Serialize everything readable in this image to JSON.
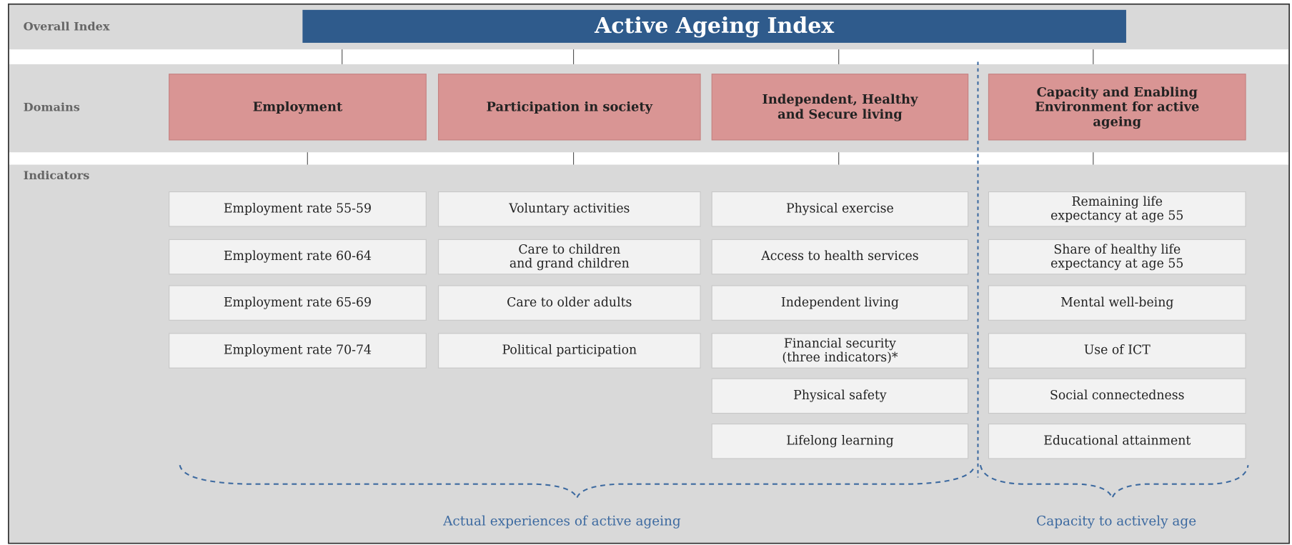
{
  "row_labels": {
    "overall": "Overall Index",
    "domains": "Domains",
    "indicators": "Indicators"
  },
  "title": "Active Ageing Index",
  "domains": [
    {
      "label": [
        "Employment"
      ],
      "indicators": [
        [
          "Employment rate 55-59"
        ],
        [
          "Employment rate 60-64"
        ],
        [
          "Employment rate 65-69"
        ],
        [
          "Employment rate 70-74"
        ]
      ]
    },
    {
      "label": [
        "Participation in society"
      ],
      "indicators": [
        [
          "Voluntary activities"
        ],
        [
          "Care to children",
          "and grand children"
        ],
        [
          "Care to older adults"
        ],
        [
          "Political participation"
        ]
      ]
    },
    {
      "label": [
        "Independent, Healthy",
        "and Secure living"
      ],
      "indicators": [
        [
          "Physical exercise"
        ],
        [
          "Access to health services"
        ],
        [
          "Independent living"
        ],
        [
          "Financial security",
          "(three indicators)*"
        ],
        [
          "Physical safety"
        ],
        [
          "Lifelong learning"
        ]
      ]
    },
    {
      "label": [
        "Capacity and Enabling",
        "Environment for active",
        "ageing"
      ],
      "indicators": [
        [
          "Remaining life",
          "expectancy at age 55"
        ],
        [
          "Share of healthy life",
          "expectancy at age 55"
        ],
        [
          "Mental well-being"
        ],
        [
          "Use of ICT"
        ],
        [
          "Social connectedness"
        ],
        [
          "Educational attainment"
        ]
      ]
    }
  ],
  "groups": [
    "Actual experiences of active ageing",
    "Capacity to actively age"
  ]
}
